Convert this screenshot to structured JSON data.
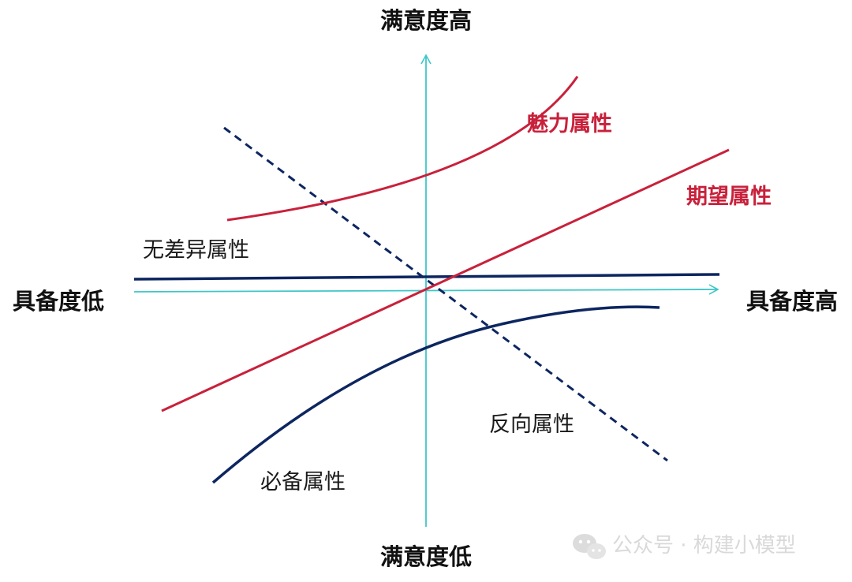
{
  "axes": {
    "y_top": "满意度高",
    "y_bottom": "满意度低",
    "x_left": "具备度低",
    "x_right": "具备度高"
  },
  "curves": {
    "attractive": "魅力属性",
    "performance": "期望属性",
    "indifferent": "无差异属性",
    "must_be": "必备属性",
    "reverse": "反向属性"
  },
  "watermark": {
    "text": "公众号 · 构建小模型",
    "icon": "wechat-icon"
  },
  "colors": {
    "axis": "#3ec6c6",
    "red": "#c8213b",
    "navy": "#0d2660",
    "watermark": "#d9d9d9"
  }
}
